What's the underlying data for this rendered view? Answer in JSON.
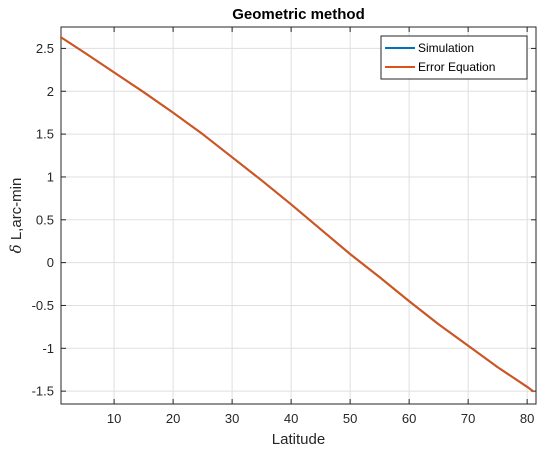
{
  "chart_data": {
    "type": "line",
    "title": "Geometric method",
    "xlabel": "Latitude",
    "ylabel_prefix": "δ",
    "ylabel_rest": " L,arc-min",
    "xlim": [
      1,
      81.5
    ],
    "ylim": [
      -1.65,
      2.75
    ],
    "xticks": [
      10,
      20,
      30,
      40,
      50,
      60,
      70,
      80
    ],
    "xtick_labels": [
      "10",
      "20",
      "30",
      "40",
      "50",
      "60",
      "70",
      "80"
    ],
    "yticks": [
      -1.5,
      -1,
      -0.5,
      0,
      0.5,
      1,
      1.5,
      2,
      2.5
    ],
    "ytick_labels": [
      "-1.5",
      "-1",
      "-0.5",
      "0",
      "0.5",
      "1",
      "1.5",
      "2",
      "2.5"
    ],
    "grid": true,
    "legend_position": "top-right",
    "series": [
      {
        "name": "Simulation",
        "color": "#0072bd",
        "x": [
          1,
          5,
          10,
          15,
          20,
          25,
          30,
          35,
          40,
          45,
          50,
          55,
          60,
          65,
          70,
          75,
          80,
          81
        ],
        "y": [
          2.63,
          2.45,
          2.22,
          1.99,
          1.75,
          1.5,
          1.23,
          0.96,
          0.68,
          0.39,
          0.1,
          -0.17,
          -0.45,
          -0.72,
          -0.97,
          -1.22,
          -1.45,
          -1.5
        ]
      },
      {
        "name": "Error Equation",
        "color": "#d95319",
        "x": [
          1,
          5,
          10,
          15,
          20,
          25,
          30,
          35,
          40,
          45,
          50,
          55,
          60,
          65,
          70,
          75,
          80,
          81
        ],
        "y": [
          2.63,
          2.45,
          2.22,
          1.99,
          1.75,
          1.5,
          1.23,
          0.96,
          0.68,
          0.39,
          0.1,
          -0.17,
          -0.45,
          -0.72,
          -0.97,
          -1.22,
          -1.45,
          -1.5
        ]
      }
    ]
  }
}
